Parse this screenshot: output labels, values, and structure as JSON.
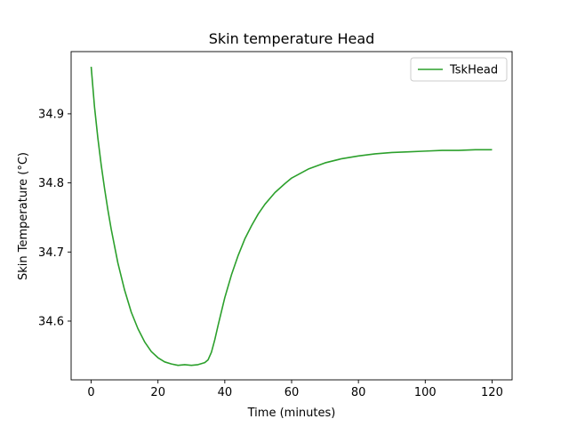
{
  "chart_data": {
    "type": "line",
    "title": "Skin temperature Head",
    "xlabel": "Time (minutes)",
    "ylabel": "Skin Temperature (°C)",
    "xlim": [
      -6,
      126
    ],
    "ylim": [
      34.515,
      34.99
    ],
    "xticks": [
      0,
      20,
      40,
      60,
      80,
      100,
      120
    ],
    "yticks": [
      34.6,
      34.7,
      34.8,
      34.9
    ],
    "xtick_labels": [
      "0",
      "20",
      "40",
      "60",
      "80",
      "100",
      "120"
    ],
    "ytick_labels": [
      "34.6",
      "34.7",
      "34.8",
      "34.9"
    ],
    "legend": {
      "position": "top-right",
      "entries": [
        "TskHead"
      ]
    },
    "series": [
      {
        "name": "TskHead",
        "color": "#2ca02c",
        "x": [
          0,
          1,
          2,
          3,
          4,
          5,
          6,
          8,
          10,
          12,
          14,
          16,
          18,
          20,
          22,
          24,
          26,
          28,
          30,
          32,
          34,
          35,
          36,
          37,
          38,
          39,
          40,
          42,
          44,
          46,
          48,
          50,
          52,
          55,
          58,
          60,
          65,
          70,
          75,
          80,
          85,
          90,
          95,
          100,
          105,
          110,
          115,
          120
        ],
        "y": [
          34.968,
          34.91,
          34.865,
          34.826,
          34.792,
          34.761,
          34.733,
          34.684,
          34.645,
          34.613,
          34.589,
          34.57,
          34.556,
          34.547,
          34.541,
          34.538,
          34.536,
          34.537,
          34.536,
          34.537,
          34.54,
          34.544,
          34.555,
          34.573,
          34.594,
          34.614,
          34.634,
          34.667,
          34.695,
          34.719,
          34.738,
          34.755,
          34.769,
          34.786,
          34.799,
          34.807,
          34.82,
          34.829,
          34.835,
          34.839,
          34.842,
          34.844,
          34.845,
          34.846,
          34.847,
          34.847,
          34.848,
          34.848
        ]
      }
    ]
  }
}
